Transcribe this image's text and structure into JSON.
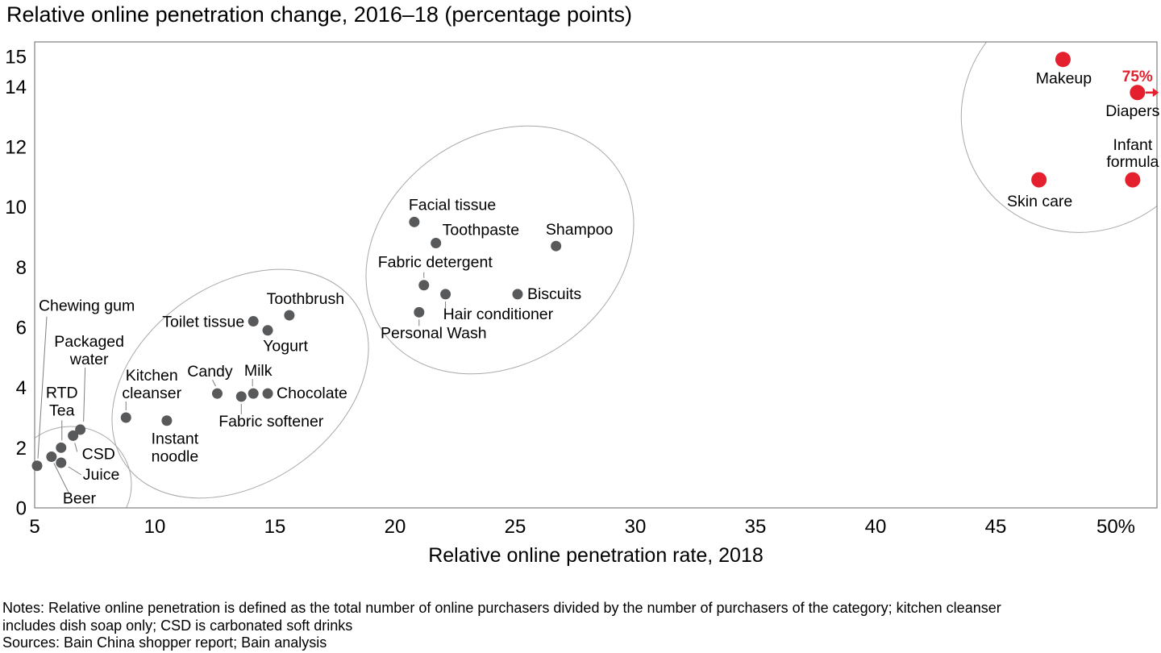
{
  "title": "Relative online penetration change, 2016–18 (percentage points)",
  "x_axis": {
    "label": "Relative online penetration rate, 2018",
    "tick_labels": [
      "5",
      "10",
      "15",
      "20",
      "25",
      "30",
      "35",
      "40",
      "45",
      "50%"
    ],
    "tick_values": [
      5,
      10,
      15,
      20,
      25,
      30,
      35,
      40,
      45,
      50
    ]
  },
  "y_axis": {
    "tick_labels": [
      "15",
      "14",
      "12",
      "10",
      "8",
      "6",
      "4",
      "2",
      "0"
    ],
    "tick_values": [
      15,
      14,
      12,
      10,
      8,
      6,
      4,
      2,
      0
    ]
  },
  "notes": {
    "lines": [
      "Notes: Relative online penetration is defined as the total number of online purchasers divided by the number of purchasers of the category; kitchen cleanser",
      "includes dish soap only; CSD is carbonated soft drinks"
    ],
    "sources": "Sources: Bain China shopper report; Bain analysis"
  },
  "colors": {
    "dot_gray": "#58595b",
    "dot_red": "#e5202e",
    "axis_border": "#7f7f7f",
    "leader": "#7f7f7f",
    "ellipse": "#a8a8a8"
  },
  "chart_data": {
    "type": "scatter",
    "title": "Relative online penetration change, 2016–18 (percentage points)",
    "xlabel": "Relative online penetration rate, 2018",
    "ylabel": "Relative online penetration change, 2016–18 (percentage points)",
    "xlim": [
      5,
      51.7
    ],
    "ylim": [
      0,
      15.5
    ],
    "x_unit": "%",
    "grid": false,
    "legend": false,
    "annotation_note": "Diapers true value is 75% (off-scale); it is drawn at the right edge with an arrow.",
    "series": [
      {
        "id": "fmcg-categories",
        "color_key": "dot_gray",
        "radius": 6.5,
        "points": [
          {
            "id": "chewing-gum",
            "name": "Chewing gum",
            "x": 5.1,
            "y": 1.4,
            "label": {
              "lines": [
                "Chewing gum"
              ],
              "anchor": "start",
              "dx": 2,
              "dy": -192
            },
            "leader": [
              12,
              -185,
              1,
              -9
            ]
          },
          {
            "id": "beer",
            "name": "Beer",
            "x": 5.7,
            "y": 1.7,
            "label": {
              "lines": [
                "Beer"
              ],
              "anchor": "start",
              "dx": 14,
              "dy": 58
            },
            "leader": [
              22,
              46,
              3,
              8
            ]
          },
          {
            "id": "juice",
            "name": "Juice",
            "x": 6.1,
            "y": 1.5,
            "label": {
              "lines": [
                "Juice"
              ],
              "anchor": "start",
              "dx": 27,
              "dy": 21
            },
            "leader": [
              25,
              15,
              9,
              5
            ]
          },
          {
            "id": "rtd-tea",
            "name": "RTD Tea",
            "x": 6.1,
            "y": 2.0,
            "label": {
              "lines": [
                "RTD",
                "Tea"
              ],
              "anchor": "middle",
              "dx": 1,
              "dy": -62,
              "lh": 22
            },
            "leader": [
              1,
              -34,
              1,
              -9
            ]
          },
          {
            "id": "csd",
            "name": "CSD",
            "x": 6.6,
            "y": 2.4,
            "label": {
              "lines": [
                "CSD"
              ],
              "anchor": "start",
              "dx": 11,
              "dy": 29
            },
            "leader": [
              5,
              20,
              2,
              9
            ]
          },
          {
            "id": "packaged-water",
            "name": "Packaged water",
            "x": 6.9,
            "y": 2.6,
            "label": {
              "lines": [
                "Packaged",
                "water"
              ],
              "anchor": "middle",
              "dx": 11,
              "dy": -103,
              "lh": 22
            },
            "leader": [
              6,
              -77,
              4,
              -10
            ]
          },
          {
            "id": "kitchen-cleanser",
            "name": "Kitchen cleanser",
            "x": 8.8,
            "y": 3.0,
            "label": {
              "lines": [
                "Kitchen",
                "cleanser"
              ],
              "anchor": "middle",
              "dx": 32,
              "dy": -46,
              "lh": 22
            },
            "leader": [
              0,
              -20,
              0,
              -9
            ]
          },
          {
            "id": "instant-noodle",
            "name": "Instant noodle",
            "x": 10.5,
            "y": 2.9,
            "label": {
              "lines": [
                "Instant",
                "noodle"
              ],
              "anchor": "middle",
              "dx": 10,
              "dy": 29,
              "lh": 22
            }
          },
          {
            "id": "candy",
            "name": "Candy",
            "x": 12.6,
            "y": 3.8,
            "label": {
              "lines": [
                "Candy"
              ],
              "anchor": "middle",
              "dx": -9,
              "dy": -21
            },
            "leader": [
              -6,
              -17,
              -2,
              -9
            ]
          },
          {
            "id": "fabric-softener",
            "name": "Fabric softener",
            "x": 13.6,
            "y": 3.7,
            "label": {
              "lines": [
                "Fabric softener"
              ],
              "anchor": "middle",
              "dx": 37,
              "dy": 37
            },
            "leader": [
              0,
              9,
              0,
              22
            ]
          },
          {
            "id": "milk",
            "name": "Milk",
            "x": 14.1,
            "y": 3.8,
            "label": {
              "lines": [
                "Milk"
              ],
              "anchor": "middle",
              "dx": 6,
              "dy": -22
            },
            "leader": [
              -1,
              -18,
              -1,
              -9
            ]
          },
          {
            "id": "chocolate",
            "name": "Chocolate",
            "x": 14.7,
            "y": 3.8,
            "label": {
              "lines": [
                "Chocolate"
              ],
              "anchor": "start",
              "dx": 11,
              "dy": 6
            }
          },
          {
            "id": "toilet-tissue",
            "name": "Toilet tissue",
            "x": 14.1,
            "y": 6.2,
            "label": {
              "lines": [
                "Toilet tissue"
              ],
              "anchor": "end",
              "dx": -11,
              "dy": 7
            }
          },
          {
            "id": "yogurt",
            "name": "Yogurt",
            "x": 14.7,
            "y": 5.9,
            "label": {
              "lines": [
                "Yogurt"
              ],
              "anchor": "middle",
              "dx": 22,
              "dy": 26
            }
          },
          {
            "id": "toothbrush",
            "name": "Toothbrush",
            "x": 15.6,
            "y": 6.4,
            "label": {
              "lines": [
                "Toothbrush"
              ],
              "anchor": "middle",
              "dx": 20,
              "dy": -14
            }
          },
          {
            "id": "facial-tissue",
            "name": "Facial tissue",
            "x": 20.8,
            "y": 9.5,
            "label": {
              "lines": [
                "Facial tissue"
              ],
              "anchor": "start",
              "dx": -7,
              "dy": -15
            }
          },
          {
            "id": "toothpaste",
            "name": "Toothpaste",
            "x": 21.7,
            "y": 8.8,
            "label": {
              "lines": [
                "Toothpaste"
              ],
              "anchor": "start",
              "dx": 8,
              "dy": -10
            }
          },
          {
            "id": "fabric-detergent",
            "name": "Fabric detergent",
            "x": 21.2,
            "y": 7.4,
            "label": {
              "lines": [
                "Fabric detergent"
              ],
              "anchor": "middle",
              "dx": 14,
              "dy": -22
            },
            "leader": [
              0,
              -16,
              0,
              -9
            ]
          },
          {
            "id": "hair-conditioner",
            "name": "Hair conditioner",
            "x": 22.1,
            "y": 7.1,
            "label": {
              "lines": [
                "Hair conditioner"
              ],
              "anchor": "start",
              "dx": -3,
              "dy": 31
            },
            "leader": [
              0,
              9,
              0,
              17
            ]
          },
          {
            "id": "personal-wash",
            "name": "Personal Wash",
            "x": 21.0,
            "y": 6.5,
            "label": {
              "lines": [
                "Personal Wash"
              ],
              "anchor": "middle",
              "dx": 18,
              "dy": 32
            },
            "leader": [
              0,
              9,
              0,
              17
            ]
          },
          {
            "id": "biscuits",
            "name": "Biscuits",
            "x": 25.1,
            "y": 7.1,
            "label": {
              "lines": [
                "Biscuits"
              ],
              "anchor": "start",
              "dx": 12,
              "dy": 6
            }
          },
          {
            "id": "shampoo",
            "name": "Shampoo",
            "x": 26.7,
            "y": 8.7,
            "label": {
              "lines": [
                "Shampoo"
              ],
              "anchor": "middle",
              "dx": 29,
              "dy": -14
            }
          }
        ]
      },
      {
        "id": "high-penetration-categories",
        "color_key": "dot_red",
        "radius": 9.5,
        "points": [
          {
            "id": "makeup",
            "name": "Makeup",
            "x": 47.8,
            "y": 14.9,
            "label": {
              "lines": [
                "Makeup"
              ],
              "anchor": "middle",
              "dx": 1,
              "dy": 30
            }
          },
          {
            "id": "diapers",
            "name": "Diapers",
            "x": 75,
            "x_drawn": 50.9,
            "y": 13.8,
            "label": {
              "lines": [
                "Diapers"
              ],
              "anchor": "middle",
              "dx": -6,
              "dy": 29
            },
            "value_label": {
              "text": "75%",
              "dx": 0,
              "dy": -14
            },
            "arrow": true
          },
          {
            "id": "skin-care",
            "name": "Skin care",
            "x": 46.8,
            "y": 10.9,
            "label": {
              "lines": [
                "Skin care"
              ],
              "anchor": "middle",
              "dx": 1,
              "dy": 33
            }
          },
          {
            "id": "infant-formula",
            "name": "Infant formula",
            "x": 50.7,
            "y": 10.9,
            "label": {
              "lines": [
                "Infant",
                "formula"
              ],
              "anchor": "middle",
              "dx": 0,
              "dy": -37,
              "lh": 21
            }
          }
        ]
      }
    ],
    "clusters": [
      {
        "id": "cluster-beverages",
        "cx": 88,
        "cy": 601,
        "rx": 75,
        "ry": 72,
        "rot": 0
      },
      {
        "id": "cluster-food-home",
        "cx": 298,
        "cy": 476,
        "rx": 174,
        "ry": 123,
        "rot": -35
      },
      {
        "id": "cluster-personal-home-care",
        "cx": 620,
        "cy": 310,
        "rx": 177,
        "ry": 141,
        "rot": -35
      },
      {
        "id": "cluster-high-penetration",
        "cx": 1345,
        "cy": 138,
        "rx": 155,
        "ry": 148,
        "rot": -35
      }
    ]
  }
}
